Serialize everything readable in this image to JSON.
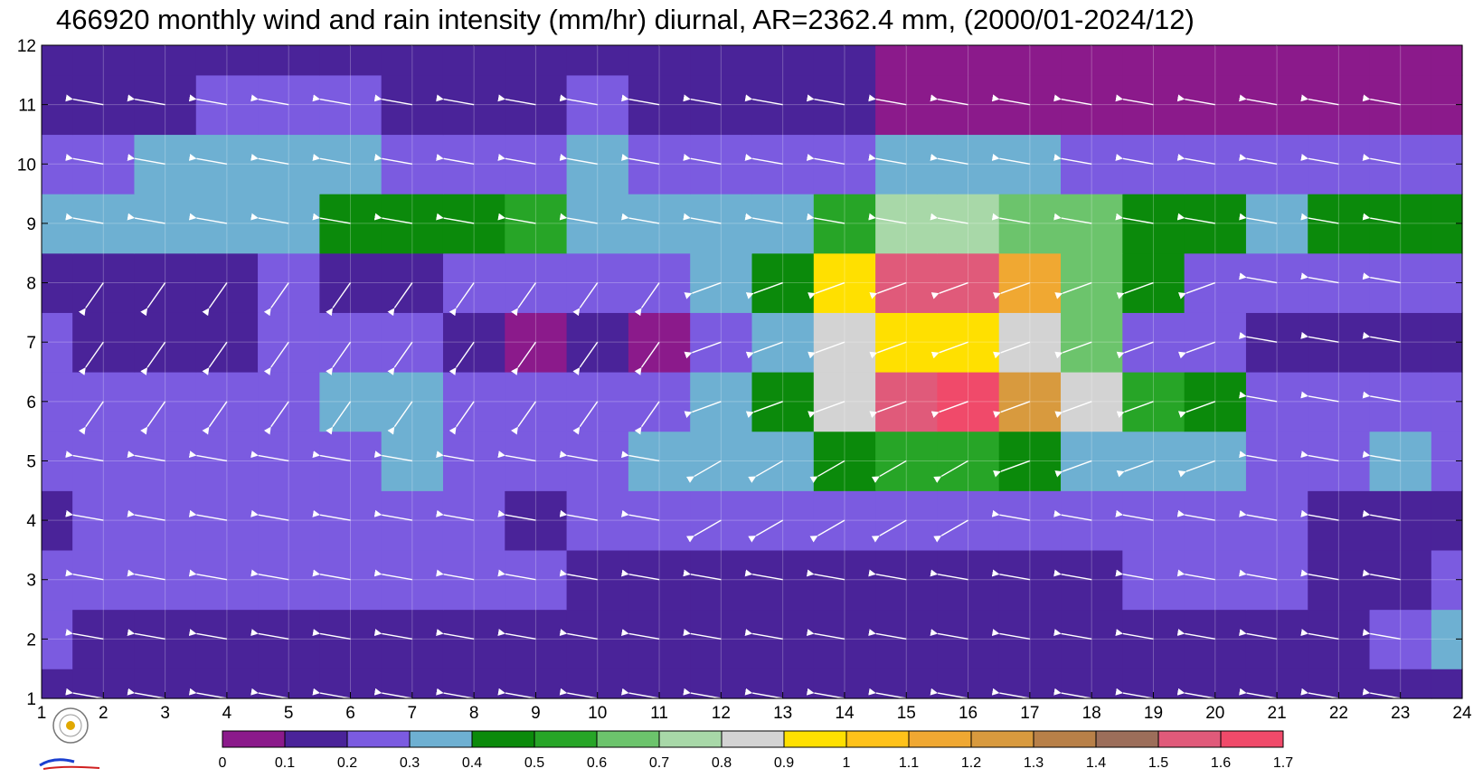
{
  "title": "466920 monthly wind and rain intensity (mm/hr) diurnal, AR=2362.4 mm, (2000/01-2024/12)",
  "chart_data": {
    "type": "heatmap",
    "title": "466920 monthly wind and rain intensity (mm/hr) diurnal, AR=2362.4 mm, (2000/01-2024/12)",
    "xlabel": "",
    "ylabel": "",
    "x_ticks": [
      1,
      2,
      3,
      4,
      5,
      6,
      7,
      8,
      9,
      10,
      11,
      12,
      13,
      14,
      15,
      16,
      17,
      18,
      19,
      20,
      21,
      22,
      23,
      24
    ],
    "y_ticks": [
      1,
      2,
      3,
      4,
      5,
      6,
      7,
      8,
      9,
      10,
      11,
      12
    ],
    "xlim": [
      1,
      24
    ],
    "ylim": [
      1,
      12
    ],
    "grid": true,
    "colorbar": {
      "levels": [
        "0",
        "0.1",
        "0.2",
        "0.3",
        "0.4",
        "0.5",
        "0.6",
        "0.7",
        "0.8",
        "0.9",
        "1",
        "1.1",
        "1.2",
        "1.3",
        "1.4",
        "1.5",
        "1.6",
        "1.7"
      ],
      "colors": [
        "#8B1A8B",
        "#4A2399",
        "#7B5BE0",
        "#6EB0D2",
        "#0B8A0B",
        "#27A527",
        "#6CC46C",
        "#A8D8A8",
        "#D3D3D3",
        "#FFE000",
        "#FFC21A",
        "#F0A832",
        "#D89A3E",
        "#B88048",
        "#9C6E5A",
        "#E05A7A",
        "#F04A6A",
        "#D8304A"
      ]
    },
    "rain_intensity": [
      [
        0.15,
        0.15,
        0.15,
        0.15,
        0.15,
        0.15,
        0.15,
        0.15,
        0.15,
        0.15,
        0.15,
        0.15,
        0.15,
        0.15,
        0.1,
        0.1,
        0.15,
        0.1,
        0.15,
        0.15,
        0.15,
        0.15,
        0.15,
        0.15
      ],
      [
        0.25,
        0.18,
        0.15,
        0.18,
        0.15,
        0.15,
        0.15,
        0.15,
        0.15,
        0.15,
        0.15,
        0.15,
        0.15,
        0.15,
        0.15,
        0.15,
        0.15,
        0.15,
        0.15,
        0.15,
        0.15,
        0.15,
        0.25,
        0.3
      ],
      [
        0.25,
        0.25,
        0.25,
        0.25,
        0.25,
        0.25,
        0.25,
        0.25,
        0.25,
        0.18,
        0.15,
        0.15,
        0.15,
        0.15,
        0.15,
        0.15,
        0.15,
        0.15,
        0.25,
        0.25,
        0.25,
        0.15,
        0.15,
        0.25
      ],
      [
        0.15,
        0.25,
        0.25,
        0.25,
        0.25,
        0.25,
        0.25,
        0.25,
        0.15,
        0.25,
        0.25,
        0.25,
        0.25,
        0.25,
        0.25,
        0.25,
        0.25,
        0.25,
        0.25,
        0.25,
        0.25,
        0.15,
        0.15,
        0.15
      ],
      [
        0.25,
        0.25,
        0.25,
        0.25,
        0.25,
        0.25,
        0.35,
        0.25,
        0.25,
        0.25,
        0.35,
        0.35,
        0.35,
        0.45,
        0.55,
        0.55,
        0.45,
        0.35,
        0.35,
        0.35,
        0.25,
        0.25,
        0.3,
        0.25
      ],
      [
        0.25,
        0.25,
        0.25,
        0.25,
        0.25,
        0.3,
        0.35,
        0.25,
        0.25,
        0.25,
        0.25,
        0.35,
        0.4,
        0.8,
        1.5,
        1.6,
        1.2,
        0.8,
        0.55,
        0.45,
        0.25,
        0.25,
        0.25,
        0.25
      ],
      [
        0.25,
        0.15,
        0.15,
        0.15,
        0.25,
        0.25,
        0.25,
        0.15,
        0.05,
        0.15,
        0.05,
        0.25,
        0.35,
        0.8,
        0.9,
        0.9,
        0.8,
        0.6,
        0.25,
        0.25,
        0.15,
        0.15,
        0.15,
        0.15
      ],
      [
        0.15,
        0.15,
        0.15,
        0.15,
        0.25,
        0.15,
        0.15,
        0.25,
        0.25,
        0.25,
        0.25,
        0.35,
        0.4,
        0.9,
        1.5,
        1.5,
        1.1,
        0.6,
        0.4,
        0.25,
        0.25,
        0.25,
        0.25,
        0.25
      ],
      [
        0.35,
        0.35,
        0.35,
        0.35,
        0.35,
        0.45,
        0.4,
        0.45,
        0.55,
        0.35,
        0.35,
        0.35,
        0.35,
        0.55,
        0.7,
        0.7,
        0.6,
        0.6,
        0.45,
        0.45,
        0.35,
        0.45,
        0.4,
        0.4
      ],
      [
        0.25,
        0.25,
        0.35,
        0.35,
        0.35,
        0.35,
        0.25,
        0.25,
        0.25,
        0.35,
        0.25,
        0.25,
        0.25,
        0.25,
        0.35,
        0.35,
        0.35,
        0.25,
        0.25,
        0.25,
        0.25,
        0.25,
        0.25,
        0.25
      ],
      [
        0.15,
        0.15,
        0.15,
        0.25,
        0.25,
        0.25,
        0.15,
        0.15,
        0.15,
        0.25,
        0.15,
        0.15,
        0.15,
        0.15,
        0.05,
        0.05,
        0.05,
        0.05,
        0.05,
        0.05,
        0.05,
        0.05,
        0.05,
        0.05
      ],
      [
        0.15,
        0.15,
        0.15,
        0.15,
        0.15,
        0.15,
        0.15,
        0.15,
        0.15,
        0.15,
        0.15,
        0.15,
        0.15,
        0.15,
        0.05,
        0.05,
        0.05,
        0.05,
        0.05,
        0.05,
        0.05,
        0.05,
        0.05,
        0.05
      ]
    ],
    "wind_arrow_direction": "mostly westward (toward left), rotating toward northwest in afternoon hours of months 5-8"
  }
}
